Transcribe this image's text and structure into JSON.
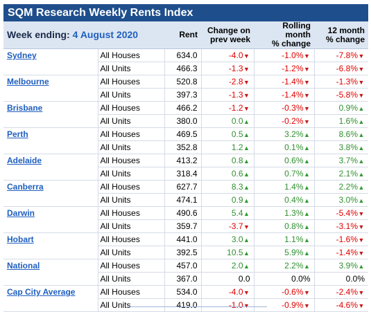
{
  "title": "SQM Research Weekly Rents Index",
  "header": {
    "week_label": "Week ending:",
    "week_date": "4 August 2020",
    "rent": "Rent",
    "change_prev_week": [
      "Change on",
      "prev week"
    ],
    "rolling_month": [
      "Rolling month",
      "% change"
    ],
    "twelve_month": [
      "12 month",
      "% change"
    ]
  },
  "colors": {
    "title_bg": "#1f4e8c",
    "header_bg": "#dce6f2",
    "negative": "#e00000",
    "positive": "#2f8f2f"
  },
  "chart_data": {
    "type": "table",
    "title": "SQM Research Weekly Rents Index",
    "columns": [
      "Week ending: 4 August 2020",
      "",
      "Rent",
      "Change on prev week",
      "Rolling month % change",
      "12 month % change"
    ],
    "rows": [
      {
        "city": "Sydney",
        "type": "All Houses",
        "rent": "634.0",
        "week": "-4.0",
        "month": "-1.0%",
        "year": "-7.8%",
        "wdir": "down",
        "mdir": "down",
        "ydir": "down"
      },
      {
        "city": "",
        "type": "All Units",
        "rent": "466.3",
        "week": "-1.3",
        "month": "-1.2%",
        "year": "-6.8%",
        "wdir": "down",
        "mdir": "down",
        "ydir": "down"
      },
      {
        "city": "Melbourne",
        "type": "All Houses",
        "rent": "520.8",
        "week": "-2.8",
        "month": "-1.4%",
        "year": "-1.3%",
        "wdir": "down",
        "mdir": "down",
        "ydir": "down"
      },
      {
        "city": "",
        "type": "All Units",
        "rent": "397.3",
        "week": "-1.3",
        "month": "-1.4%",
        "year": "-5.8%",
        "wdir": "down",
        "mdir": "down",
        "ydir": "down"
      },
      {
        "city": "Brisbane",
        "type": "All Houses",
        "rent": "466.2",
        "week": "-1.2",
        "month": "-0.3%",
        "year": "0.9%",
        "wdir": "down",
        "mdir": "down",
        "ydir": "up"
      },
      {
        "city": "",
        "type": "All Units",
        "rent": "380.0",
        "week": "0.0",
        "month": "-0.2%",
        "year": "1.6%",
        "wdir": "up",
        "mdir": "down",
        "ydir": "up"
      },
      {
        "city": "Perth",
        "type": "All Houses",
        "rent": "469.5",
        "week": "0.5",
        "month": "3.2%",
        "year": "8.6%",
        "wdir": "up",
        "mdir": "up",
        "ydir": "up"
      },
      {
        "city": "",
        "type": "All Units",
        "rent": "352.8",
        "week": "1.2",
        "month": "0.1%",
        "year": "3.8%",
        "wdir": "up",
        "mdir": "up",
        "ydir": "up"
      },
      {
        "city": "Adelaide",
        "type": "All Houses",
        "rent": "413.2",
        "week": "0.8",
        "month": "0.6%",
        "year": "3.7%",
        "wdir": "up",
        "mdir": "up",
        "ydir": "up"
      },
      {
        "city": "",
        "type": "All Units",
        "rent": "318.4",
        "week": "0.6",
        "month": "0.7%",
        "year": "2.1%",
        "wdir": "up",
        "mdir": "up",
        "ydir": "up"
      },
      {
        "city": "Canberra",
        "type": "All Houses",
        "rent": "627.7",
        "week": "8.3",
        "month": "1.4%",
        "year": "2.2%",
        "wdir": "up",
        "mdir": "up",
        "ydir": "up"
      },
      {
        "city": "",
        "type": "All Units",
        "rent": "474.1",
        "week": "0.9",
        "month": "0.4%",
        "year": "3.0%",
        "wdir": "up",
        "mdir": "up",
        "ydir": "up"
      },
      {
        "city": "Darwin",
        "type": "All Houses",
        "rent": "490.6",
        "week": "5.4",
        "month": "1.3%",
        "year": "-5.4%",
        "wdir": "up",
        "mdir": "up",
        "ydir": "down"
      },
      {
        "city": "",
        "type": "All Units",
        "rent": "359.7",
        "week": "-3.7",
        "month": "0.8%",
        "year": "-3.1%",
        "wdir": "down",
        "mdir": "up",
        "ydir": "down"
      },
      {
        "city": "Hobart",
        "type": "All Houses",
        "rent": "441.0",
        "week": "3.0",
        "month": "1.1%",
        "year": "-1.6%",
        "wdir": "up",
        "mdir": "up",
        "ydir": "down"
      },
      {
        "city": "",
        "type": "All Units",
        "rent": "392.5",
        "week": "10.5",
        "month": "5.9%",
        "year": "-1.4%",
        "wdir": "up",
        "mdir": "up",
        "ydir": "down"
      },
      {
        "city": "National",
        "type": "All Houses",
        "rent": "457.0",
        "week": "2.0",
        "month": "2.2%",
        "year": "3.9%",
        "wdir": "up",
        "mdir": "up",
        "ydir": "up"
      },
      {
        "city": "",
        "type": "All Units",
        "rent": "367.0",
        "week": "0.0",
        "month": "0.0%",
        "year": "0.0%",
        "wdir": "none",
        "mdir": "none",
        "ydir": "none"
      },
      {
        "city": "Cap City Average",
        "type": "All Houses",
        "rent": "534.0",
        "week": "-4.0",
        "month": "-0.6%",
        "year": "-2.4%",
        "wdir": "down",
        "mdir": "down",
        "ydir": "down"
      },
      {
        "city": "",
        "type": "All Units",
        "rent": "419.0",
        "week": "-1.0",
        "month": "-0.9%",
        "year": "-4.6%",
        "wdir": "down",
        "mdir": "down",
        "ydir": "down"
      }
    ]
  }
}
